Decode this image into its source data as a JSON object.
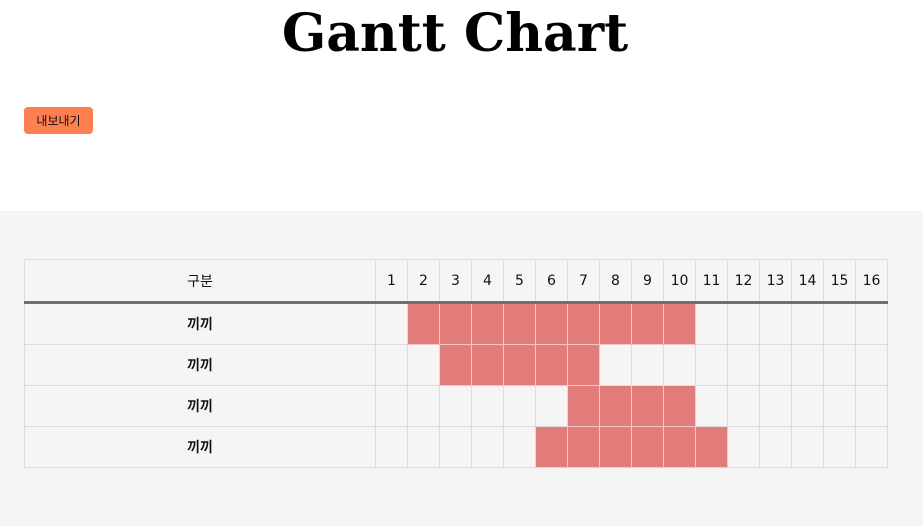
{
  "page": {
    "title": "Gantt Chart",
    "export_label": "내보내기"
  },
  "gantt": {
    "header_label": "구분",
    "columns": [
      "1",
      "2",
      "3",
      "4",
      "5",
      "6",
      "7",
      "8",
      "9",
      "10",
      "11",
      "12",
      "13",
      "14",
      "15",
      "16"
    ],
    "rows": [
      {
        "label": "끼끼",
        "start": 2,
        "end": 10
      },
      {
        "label": "끼끼",
        "start": 3,
        "end": 7
      },
      {
        "label": "끼끼",
        "start": 7,
        "end": 10
      },
      {
        "label": "끼끼",
        "start": 6,
        "end": 11
      }
    ]
  },
  "colors": {
    "accent_button": "#ff7f50",
    "bar_fill": "#e27c7b",
    "panel_background": "#f5f5f5",
    "header_divider": "#707070"
  }
}
